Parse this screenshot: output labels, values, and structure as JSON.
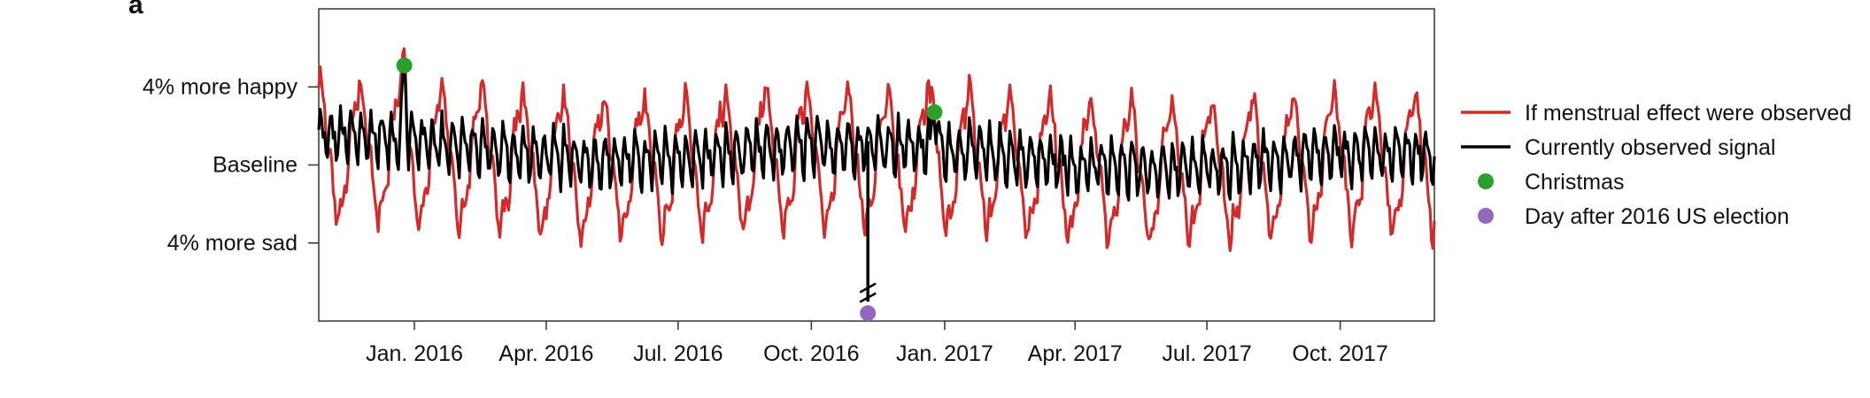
{
  "panel_label": "a",
  "chart_data": {
    "type": "line",
    "title": "",
    "xlabel": "",
    "ylabel": "",
    "x_ticks": [
      "Jan. 2016",
      "Apr. 2016",
      "Jul. 2016",
      "Oct. 2016",
      "Jan. 2017",
      "Apr. 2017",
      "Jul. 2017",
      "Oct. 2017"
    ],
    "x_range": [
      "2015-10-27",
      "2017-12-05"
    ],
    "y_ticks": [
      {
        "value": 4,
        "label": "4% more happy"
      },
      {
        "value": 0,
        "label": "Baseline"
      },
      {
        "value": -4,
        "label": "4% more sad"
      }
    ],
    "ylim": [
      -8,
      8
    ],
    "grid": false,
    "legend_position": "right",
    "series": [
      {
        "name": "If menstrual effect were observed",
        "color": "#d42a2a",
        "style": "line"
      },
      {
        "name": "Currently observed signal",
        "color": "#000000",
        "style": "line"
      },
      {
        "name": "Christmas",
        "color": "#2ca02c",
        "style": "point",
        "points": [
          {
            "x": "2015-12-25",
            "y": 5.1
          },
          {
            "x": "2016-12-25",
            "y": 2.7
          }
        ]
      },
      {
        "name": "Day after 2016 US election",
        "color": "#9467bd",
        "style": "point",
        "points": [
          {
            "x": "2016-11-09",
            "y": -7.6
          }
        ]
      }
    ],
    "annotations": [
      {
        "type": "axis-break",
        "x": "2016-11-09"
      }
    ]
  }
}
